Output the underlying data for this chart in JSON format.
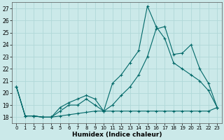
{
  "background_color": "#cbe9e9",
  "grid_color": "#b0d8d8",
  "line_color": "#006868",
  "xlabel": "Humidex (Indice chaleur)",
  "ylim": [
    17.5,
    27.5
  ],
  "xlim": [
    -0.5,
    23.5
  ],
  "yticks": [
    18,
    19,
    20,
    21,
    22,
    23,
    24,
    25,
    26,
    27
  ],
  "xticks": [
    0,
    1,
    2,
    3,
    4,
    5,
    6,
    7,
    8,
    9,
    10,
    11,
    12,
    13,
    14,
    15,
    16,
    17,
    18,
    19,
    20,
    21,
    22,
    23
  ],
  "series": [
    [
      20.5,
      18.1,
      18.1,
      18.0,
      18.0,
      18.1,
      18.2,
      18.3,
      18.4,
      18.5,
      18.5,
      18.5,
      18.5,
      18.5,
      18.5,
      18.5,
      18.5,
      18.5,
      18.5,
      18.5,
      18.5,
      18.5,
      18.5,
      18.8
    ],
    [
      20.5,
      18.1,
      18.1,
      18.0,
      18.0,
      18.5,
      19.0,
      19.0,
      19.5,
      19.0,
      18.5,
      19.0,
      19.8,
      20.5,
      21.5,
      23.0,
      25.3,
      25.5,
      23.2,
      23.3,
      24.0,
      22.0,
      20.8,
      18.8
    ],
    [
      20.5,
      18.1,
      18.1,
      18.0,
      18.0,
      18.8,
      19.2,
      19.5,
      19.8,
      19.5,
      18.5,
      20.8,
      21.5,
      22.5,
      23.5,
      27.2,
      25.5,
      24.5,
      22.5,
      22.0,
      21.5,
      21.0,
      20.2,
      18.8
    ]
  ]
}
